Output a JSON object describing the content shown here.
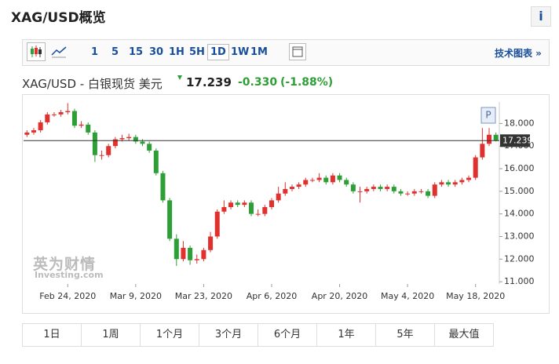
{
  "header": {
    "title": "XAG/USD概览",
    "info": "i"
  },
  "toolbar": {
    "intervals": [
      "1",
      "5",
      "15",
      "30",
      "1H",
      "5H",
      "1D",
      "1W",
      "1M"
    ],
    "link": "技术图表 »"
  },
  "quote": {
    "name": "XAG/USD - 白银现货 美元",
    "price": "17.239",
    "change": "-0.330",
    "change_pct": "(-1.88%)"
  },
  "watermark": {
    "brand": "英为财情",
    "site": "Investing.com"
  },
  "ranges": [
    "1日",
    "1周",
    "1个月",
    "3个月",
    "6个月",
    "1年",
    "5年",
    "最大值"
  ],
  "chart_data": {
    "type": "candlestick",
    "marker": "P",
    "categories": [
      null,
      null,
      null,
      null,
      null,
      null,
      "Feb 24, 2020",
      null,
      null,
      null,
      null,
      null,
      null,
      null,
      null,
      null,
      "Mar 9, 2020",
      null,
      null,
      null,
      null,
      null,
      null,
      null,
      null,
      null,
      "Mar 23, 2020",
      null,
      null,
      null,
      null,
      null,
      null,
      null,
      null,
      null,
      "Apr 6, 2020",
      null,
      null,
      null,
      null,
      null,
      null,
      null,
      null,
      null,
      "Apr 20, 2020",
      null,
      null,
      null,
      null,
      null,
      null,
      null,
      null,
      null,
      "May 4, 2020",
      null,
      null,
      null,
      null,
      null,
      null,
      null,
      null,
      null,
      "May 18, 2020",
      null,
      null,
      null
    ],
    "open": [
      17.5,
      17.6,
      17.7,
      18.05,
      18.4,
      18.4,
      18.5,
      18.55,
      17.9,
      17.95,
      17.6,
      16.6,
      16.6,
      17.0,
      17.3,
      17.35,
      17.4,
      17.2,
      17.1,
      16.8,
      15.8,
      14.6,
      12.9,
      12.0,
      12.5,
      11.95,
      12.0,
      12.4,
      13.0,
      14.1,
      14.3,
      14.5,
      14.4,
      14.5,
      14.0,
      14.0,
      14.3,
      14.6,
      14.9,
      15.1,
      15.2,
      15.3,
      15.5,
      15.5,
      15.6,
      15.4,
      15.7,
      15.5,
      15.3,
      15.0,
      15.0,
      15.1,
      15.2,
      15.1,
      15.2,
      15.0,
      14.9,
      14.9,
      15.0,
      15.0,
      14.8,
      15.3,
      15.4,
      15.3,
      15.4,
      15.5,
      15.6,
      16.5,
      17.1,
      17.5
    ],
    "high": [
      17.7,
      17.8,
      18.15,
      18.5,
      18.5,
      18.6,
      18.9,
      18.65,
      18.1,
      18.05,
      17.7,
      16.8,
      17.1,
      17.4,
      17.5,
      17.55,
      17.5,
      17.3,
      17.2,
      16.9,
      15.9,
      14.7,
      13.1,
      12.8,
      12.6,
      12.2,
      12.5,
      13.2,
      14.2,
      14.6,
      14.6,
      14.6,
      14.6,
      14.6,
      14.2,
      14.4,
      14.7,
      15.2,
      15.4,
      15.3,
      15.4,
      15.6,
      15.6,
      15.8,
      15.7,
      15.8,
      15.8,
      15.6,
      15.4,
      15.2,
      15.2,
      15.3,
      15.3,
      15.3,
      15.3,
      15.1,
      15.0,
      15.1,
      15.1,
      15.1,
      15.4,
      15.5,
      15.5,
      15.5,
      15.6,
      15.7,
      16.6,
      17.8,
      17.8,
      17.6
    ],
    "low": [
      17.4,
      17.5,
      17.6,
      17.95,
      18.3,
      18.3,
      18.4,
      17.8,
      17.8,
      17.5,
      16.3,
      16.4,
      16.5,
      16.9,
      17.2,
      17.25,
      17.1,
      17.0,
      16.7,
      15.7,
      14.5,
      12.8,
      11.7,
      11.9,
      11.75,
      11.8,
      11.9,
      12.3,
      12.9,
      14.0,
      14.2,
      14.3,
      14.3,
      13.9,
      13.9,
      13.9,
      14.2,
      14.5,
      14.8,
      15.0,
      15.1,
      15.2,
      15.4,
      15.4,
      15.3,
      15.3,
      15.4,
      15.2,
      14.9,
      14.5,
      14.9,
      15.0,
      15.0,
      15.0,
      14.9,
      14.8,
      14.8,
      14.8,
      14.9,
      14.7,
      14.7,
      15.2,
      15.2,
      15.2,
      15.3,
      15.4,
      15.5,
      16.4,
      17.0,
      17.2
    ],
    "close": [
      17.6,
      17.7,
      18.05,
      18.4,
      18.4,
      18.5,
      18.55,
      17.9,
      17.95,
      17.6,
      16.6,
      16.6,
      17.0,
      17.3,
      17.35,
      17.4,
      17.2,
      17.1,
      16.8,
      15.8,
      14.6,
      12.9,
      12.0,
      12.5,
      11.95,
      12.0,
      12.4,
      13.0,
      14.1,
      14.3,
      14.5,
      14.4,
      14.5,
      14.0,
      14.0,
      14.3,
      14.6,
      14.9,
      15.1,
      15.2,
      15.3,
      15.5,
      15.5,
      15.6,
      15.4,
      15.7,
      15.5,
      15.3,
      15.0,
      15.0,
      15.1,
      15.2,
      15.1,
      15.2,
      15.0,
      14.9,
      14.9,
      15.0,
      15.0,
      14.8,
      15.3,
      15.4,
      15.3,
      15.4,
      15.5,
      15.6,
      16.5,
      17.1,
      17.5,
      17.239
    ],
    "up_color": "#e0312e",
    "down_color": "#2e9e36",
    "last_value": 17.239,
    "last_color": "#333333",
    "ylim": [
      10.9,
      18.95
    ],
    "yticks": [
      {
        "value": 11,
        "label": "11.000"
      },
      {
        "value": 12,
        "label": "12.000"
      },
      {
        "value": 13,
        "label": "13.000"
      },
      {
        "value": 14,
        "label": "14.000"
      },
      {
        "value": 15,
        "label": "15.000"
      },
      {
        "value": 16,
        "label": "16.000"
      },
      {
        "value": 17,
        "label": "17.000"
      },
      {
        "value": 18,
        "label": "18.000"
      }
    ],
    "grid": false
  }
}
